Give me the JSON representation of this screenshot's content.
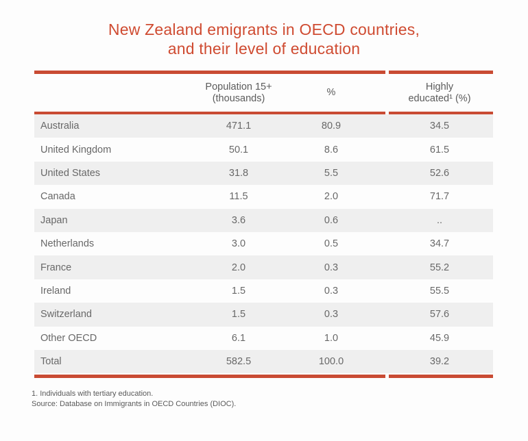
{
  "chart_data": {
    "type": "table",
    "title": "New Zealand emigrants in OECD countries, and their level of education",
    "columns": [
      "",
      "Population 15+ (thousands)",
      "%",
      "Highly educated¹ (%)"
    ],
    "rows": [
      [
        "Australia",
        "471.1",
        "80.9",
        "34.5"
      ],
      [
        "United Kingdom",
        "50.1",
        "8.6",
        "61.5"
      ],
      [
        "United States",
        "31.8",
        "5.5",
        "52.6"
      ],
      [
        "Canada",
        "11.5",
        "2.0",
        "71.7"
      ],
      [
        "Japan",
        "3.6",
        "0.6",
        ".."
      ],
      [
        "Netherlands",
        "3.0",
        "0.5",
        "34.7"
      ],
      [
        "France",
        "2.0",
        "0.3",
        "55.2"
      ],
      [
        "Ireland",
        "1.5",
        "0.3",
        "55.5"
      ],
      [
        "Switzerland",
        "1.5",
        "0.3",
        "57.6"
      ],
      [
        "Other OECD",
        "6.1",
        "1.0",
        "45.9"
      ],
      [
        "Total",
        "582.5",
        "100.0",
        "39.2"
      ]
    ],
    "footnotes": [
      "1. Individuals with tertiary education.",
      "Source: Database on Immigrants in OECD Countries (DIOC)."
    ],
    "layout": {
      "zebra_striping": true,
      "shaded_rows": "odd rows starting with Australia and including Total",
      "rule_gap_between_percent_and_highly_educated_columns": true
    }
  },
  "title": {
    "line1": "New Zealand emigrants in OECD countries,",
    "line2": "and their level of education"
  },
  "header": {
    "pop_line1": "Population 15+",
    "pop_line2": "(thousands)",
    "pct": "%",
    "high_line1": "Highly",
    "high_line2": "educated¹ (%)"
  },
  "footnotes": {
    "note": "1. Individuals with tertiary education.",
    "source": "Source: Database on Immigrants in OECD Countries (DIOC)."
  },
  "colors": {
    "accent_red": "#c94b33",
    "title_red": "#cf4b31",
    "row_shade": "#efefef",
    "header_text": "#5b5b5b",
    "body_text": "#686868",
    "page_bg": "#fdfdfd"
  }
}
